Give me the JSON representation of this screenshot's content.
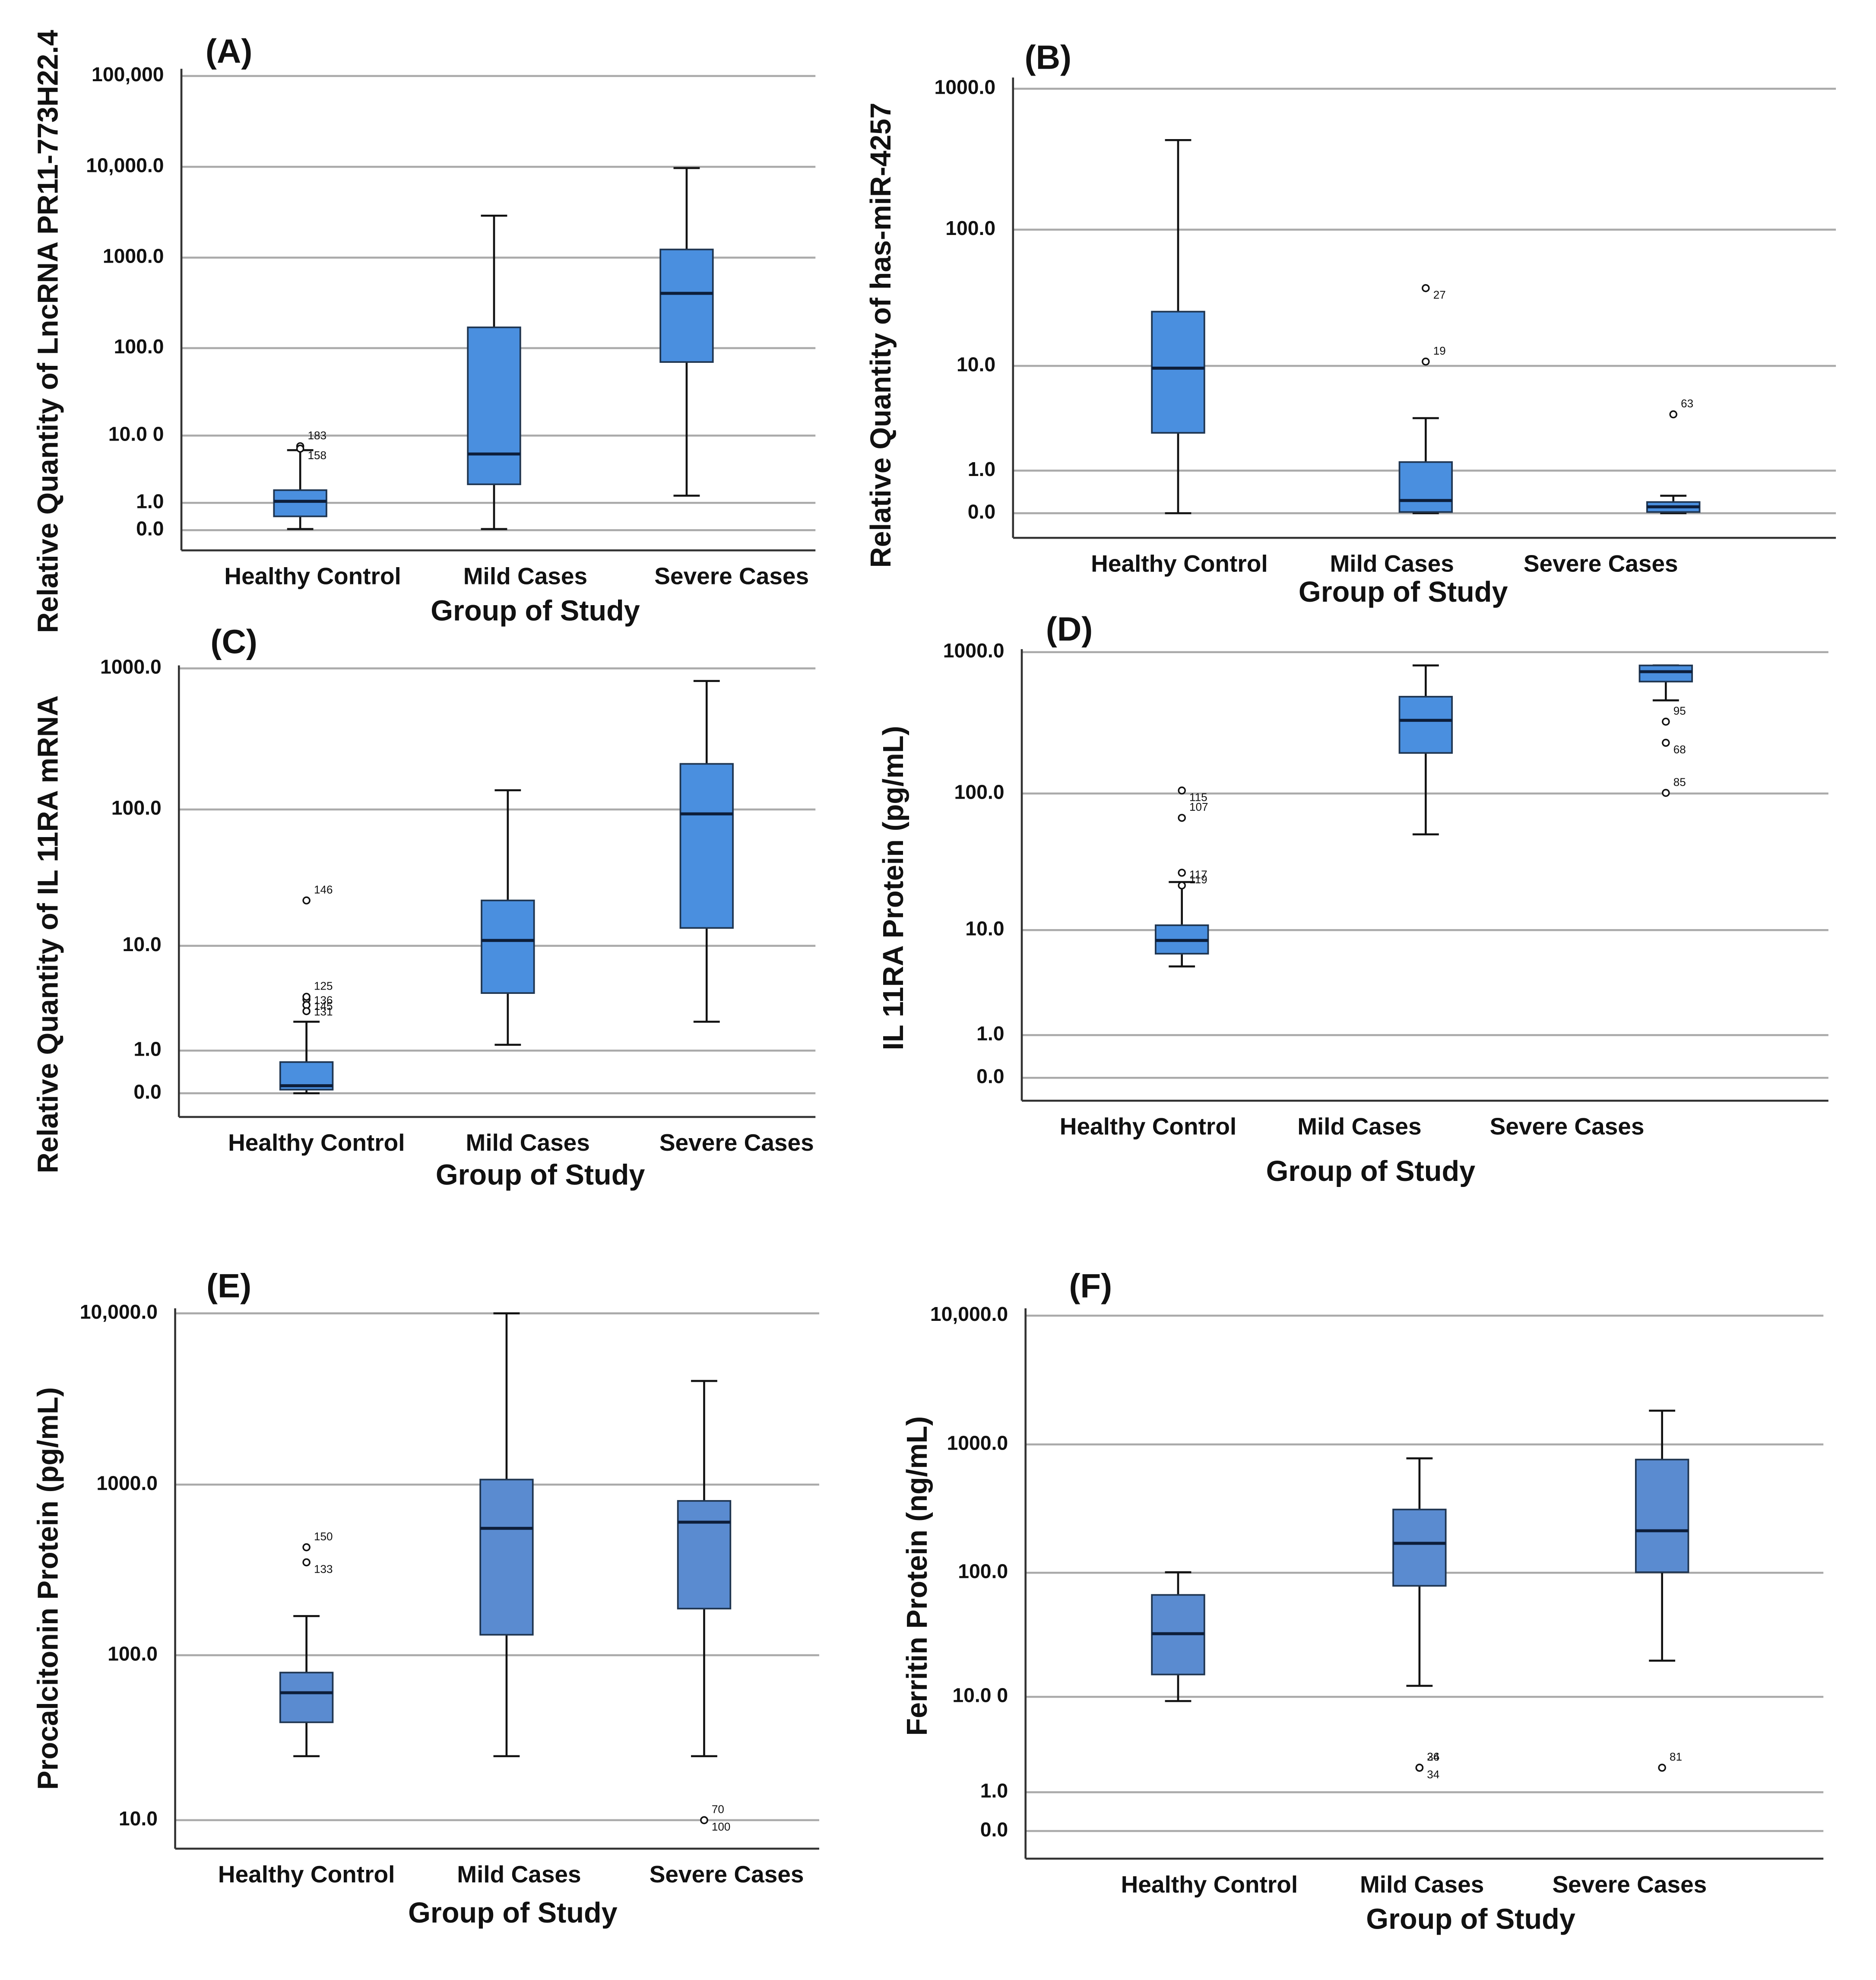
{
  "chart_data": [
    {
      "type": "box",
      "label": "(A)",
      "xlabel": "Group of Study",
      "ylabel": "Relative Quantity of LncRNA PR11-773H22.4",
      "yscale": "log1p",
      "ylim": [
        -0.4,
        120000
      ],
      "yticks": [
        {
          "value": 100000,
          "label": "100,000"
        },
        {
          "value": 10000,
          "label": "10,000.0"
        },
        {
          "value": 1000,
          "label": "1000.0"
        },
        {
          "value": 100,
          "label": "100.0"
        },
        {
          "value": 10,
          "label": "10.0 0"
        },
        {
          "value": 1,
          "label": "1.0"
        },
        {
          "value": 0,
          "label": "0.0"
        }
      ],
      "grid": true,
      "color": "#4a8fdf",
      "categories": [
        "Healthy Control",
        "Mild Cases",
        "Severe Cases"
      ],
      "boxes": [
        {
          "whisker_low": 0.03,
          "q1": 0.42,
          "median": 1.08,
          "q3": 1.76,
          "whisker_high": 6.6,
          "outliers": [
            {
              "value": 7.4,
              "label": "183"
            },
            {
              "value": 6.9,
              "label": "158"
            }
          ]
        },
        {
          "whisker_low": 0.03,
          "q1": 2.2,
          "median": 5.9,
          "q3": 170,
          "whisker_high": 2900,
          "outliers": []
        },
        {
          "whisker_low": 1.4,
          "q1": 70,
          "median": 404,
          "q3": 1230,
          "whisker_high": 9700,
          "outliers": []
        }
      ]
    },
    {
      "type": "box",
      "label": "(B)",
      "xlabel": "Group of Study",
      "ylabel": "Relative Quantity of has-miR-4257",
      "yscale": "log1p",
      "ylim": [
        -0.33,
        1200
      ],
      "yticks": [
        {
          "value": 1000,
          "label": "1000.0"
        },
        {
          "value": 100,
          "label": "100.0"
        },
        {
          "value": 10,
          "label": "10.0"
        },
        {
          "value": 1,
          "label": "1.0"
        },
        {
          "value": 0,
          "label": "0.0"
        }
      ],
      "grid": true,
      "color": "#4a8fdf",
      "categories": [
        "Healthy Control",
        "Mild Cases",
        "Severe Cases"
      ],
      "boxes": [
        {
          "whisker_low": 0,
          "q1": 2.7,
          "median": 9.6,
          "q3": 25.6,
          "whisker_high": 433,
          "outliers": []
        },
        {
          "whisker_low": 0,
          "q1": 0.02,
          "median": 0.23,
          "q3": 1.3,
          "whisker_high": 3.7,
          "outliers": [
            {
              "value": 10.8,
              "label": "19"
            },
            {
              "value": 38,
              "label": "27"
            }
          ]
        },
        {
          "whisker_low": 0,
          "q1": 0.02,
          "median": 0.11,
          "q3": 0.2,
          "whisker_high": 0.33,
          "outliers": [
            {
              "value": 4.0,
              "label": "63"
            }
          ]
        }
      ]
    },
    {
      "type": "box",
      "label": "(C)",
      "xlabel": "Group of Study",
      "ylabel": "Relative Quantity of IL 11RA mRNA",
      "yscale": "log1p",
      "ylim": [
        -0.32,
        1050
      ],
      "yticks": [
        {
          "value": 1000,
          "label": "1000.0"
        },
        {
          "value": 100,
          "label": "100.0"
        },
        {
          "value": 10,
          "label": "10.0"
        },
        {
          "value": 1,
          "label": "1.0"
        },
        {
          "value": 0,
          "label": "0.0"
        }
      ],
      "grid": true,
      "color": "#4a8fdf",
      "categories": [
        "Healthy Control",
        "Mild Cases",
        "Severe Cases"
      ],
      "boxes": [
        {
          "whisker_low": 0,
          "q1": 0.06,
          "median": 0.13,
          "q3": 0.66,
          "whisker_high": 2.2,
          "outliers": [
            {
              "value": 22,
              "label": "146"
            },
            {
              "value": 3.6,
              "label": "145"
            },
            {
              "value": 3.8,
              "label": "125"
            },
            {
              "value": 3.2,
              "label": "131"
            },
            {
              "value": 2.8,
              "label": "136"
            }
          ]
        },
        {
          "whisker_low": 1.2,
          "q1": 4.1,
          "median": 11,
          "q3": 22,
          "whisker_high": 137,
          "outliers": []
        },
        {
          "whisker_low": 2.2,
          "q1": 13.7,
          "median": 93,
          "q3": 211,
          "whisker_high": 815,
          "outliers": []
        }
      ]
    },
    {
      "type": "box",
      "label": "(D)",
      "xlabel": "Group of Study",
      "ylabel": "IL 11RA Protein (pg/mL)",
      "yscale": "log1p",
      "ylim": [
        -0.31,
        1050
      ],
      "yticks": [
        {
          "value": 1000,
          "label": "1000.0"
        },
        {
          "value": 100,
          "label": "100.0"
        },
        {
          "value": 10,
          "label": "10.0"
        },
        {
          "value": 1,
          "label": "1.0"
        },
        {
          "value": 0,
          "label": "0.0"
        }
      ],
      "grid": true,
      "color": "#4a8fdf",
      "categories": [
        "Healthy Control",
        "Mild Cases",
        "Severe Cases"
      ],
      "boxes": [
        {
          "whisker_low": 5.1,
          "q1": 6.5,
          "median": 8.3,
          "q3": 10.9,
          "whisker_high": 23,
          "outliers": [
            {
              "value": 21.7,
              "label": "117"
            },
            {
              "value": 26.9,
              "label": "119"
            },
            {
              "value": 67,
              "label": "107"
            },
            {
              "value": 105,
              "label": "115"
            }
          ]
        },
        {
          "whisker_low": 51,
          "q1": 194,
          "median": 330,
          "q3": 485,
          "whisker_high": 806,
          "outliers": []
        },
        {
          "whisker_low": 457,
          "q1": 620,
          "median": 728,
          "q3": 806,
          "whisker_high": 806,
          "outliers": [
            {
              "value": 323,
              "label": "95"
            },
            {
              "value": 229,
              "label": "68"
            },
            {
              "value": 101,
              "label": "85"
            }
          ]
        }
      ]
    },
    {
      "type": "box",
      "label": "(E)",
      "xlabel": "Group of Study",
      "ylabel": "Procalcitonin  Protein (pg/mL)",
      "yscale": "log1p",
      "ylim": [
        6.5,
        10700
      ],
      "yticks": [
        {
          "value": 10000,
          "label": "10,000.0"
        },
        {
          "value": 1000,
          "label": "1000.0"
        },
        {
          "value": 100,
          "label": "100.0"
        },
        {
          "value": 10,
          "label": "10.0"
        }
      ],
      "grid": true,
      "color": "#5a8bd0",
      "categories": [
        "Healthy Control",
        "Mild Cases",
        "Severe Cases"
      ],
      "boxes": [
        {
          "whisker_low": 25,
          "q1": 40,
          "median": 60,
          "q3": 79,
          "whisker_high": 170,
          "outliers": [
            {
              "value": 430,
              "label": "150"
            },
            {
              "value": 351,
              "label": "133"
            }
          ]
        },
        {
          "whisker_low": 25,
          "q1": 132,
          "median": 555,
          "q3": 1070,
          "whisker_high": 10000,
          "outliers": []
        },
        {
          "whisker_low": 25,
          "q1": 188,
          "median": 603,
          "q3": 803,
          "whisker_high": 4030,
          "outliers": [
            {
              "value": 10,
              "label": "70"
            },
            {
              "value": 10,
              "label": "100"
            }
          ]
        }
      ]
    },
    {
      "type": "box",
      "label": "(F)",
      "xlabel": "Group of Study",
      "ylabel": "Ferritin Protein (ng/mL)",
      "yscale": "log1p",
      "ylim": [
        -0.39,
        11400
      ],
      "yticks": [
        {
          "value": 10000,
          "label": "10,000.0"
        },
        {
          "value": 1000,
          "label": "1000.0"
        },
        {
          "value": 100,
          "label": "100.0"
        },
        {
          "value": 10,
          "label": "10.0 0"
        },
        {
          "value": 1,
          "label": "1.0"
        },
        {
          "value": 0,
          "label": "0.0"
        }
      ],
      "grid": true,
      "color": "#5a8bd0",
      "categories": [
        "Healthy Control",
        "Mild Cases",
        "Severe Cases"
      ],
      "boxes": [
        {
          "whisker_low": 9.2,
          "q1": 15.4,
          "median": 33,
          "q3": 67,
          "whisker_high": 101,
          "outliers": []
        },
        {
          "whisker_low": 12.4,
          "q1": 79,
          "median": 170,
          "q3": 312,
          "whisker_high": 780,
          "outliers": [
            {
              "value": 2.1,
              "label": "36"
            },
            {
              "value": 2.1,
              "label": "34"
            },
            {
              "value": 2.1,
              "label": "24"
            }
          ]
        },
        {
          "whisker_low": 20,
          "q1": 101,
          "median": 213,
          "q3": 763,
          "whisker_high": 1830,
          "outliers": [
            {
              "value": 2.1,
              "label": "81"
            }
          ]
        }
      ]
    }
  ]
}
